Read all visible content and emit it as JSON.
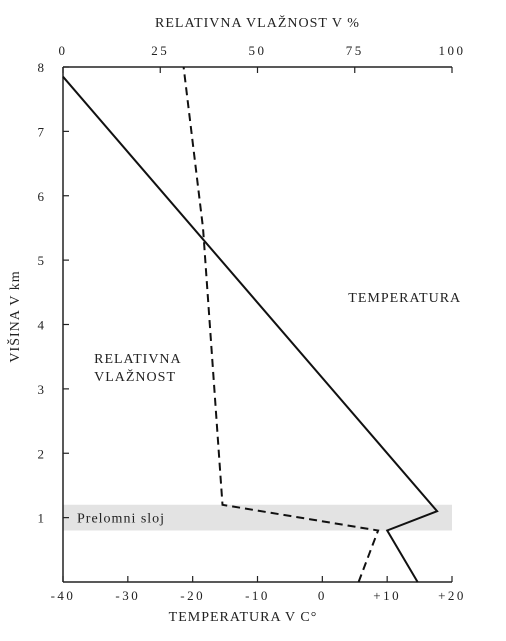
{
  "chart_data": {
    "type": "line",
    "top_axis": {
      "title": "RELATIVNA VLAŽNOST V %",
      "range": [
        0,
        100
      ],
      "ticks": [
        0,
        25,
        50,
        75,
        100
      ],
      "tick_labels": [
        "0",
        "25",
        "50",
        "75",
        "100"
      ]
    },
    "bottom_axis": {
      "title": "TEMPERATURA V  C°",
      "range": [
        -40,
        20
      ],
      "ticks": [
        -40,
        -30,
        -20,
        -10,
        0,
        10,
        20
      ],
      "tick_labels": [
        "-40",
        "-30",
        "-20",
        "-10",
        "0",
        "+10",
        "+20"
      ]
    },
    "left_axis": {
      "title": "VIŠINA V km",
      "range": [
        0,
        8
      ],
      "ticks": [
        1,
        2,
        3,
        4,
        5,
        6,
        7,
        8
      ],
      "tick_labels": [
        "1",
        "2",
        "3",
        "4",
        "5",
        "6",
        "7",
        "8"
      ]
    },
    "band": {
      "label": "Prelomni sloj",
      "from": 0.8,
      "to": 1.2
    },
    "series": [
      {
        "name": "TEMPERATURA",
        "axis": "bottom",
        "style": "solid",
        "points": [
          [
            14.7,
            0
          ],
          [
            10,
            0.8
          ],
          [
            17.7,
            1.1
          ],
          [
            -40,
            7.85
          ]
        ]
      },
      {
        "name": "RELATIVNA VLAŽNOST",
        "axis": "top",
        "style": "dashed",
        "points": [
          [
            76,
            0
          ],
          [
            81,
            0.8
          ],
          [
            41,
            1.2
          ],
          [
            36,
            5.5
          ],
          [
            31,
            8
          ]
        ]
      }
    ],
    "annotations": [
      {
        "lines": [
          "TEMPERATURA"
        ],
        "x": 4,
        "y": 4.35,
        "axis": "bottom"
      },
      {
        "lines": [
          "RELATIVNA",
          "VLAŽNOST"
        ],
        "x": 8,
        "y": 3.4,
        "axis": "top"
      }
    ],
    "grid": false,
    "legend": "none"
  }
}
